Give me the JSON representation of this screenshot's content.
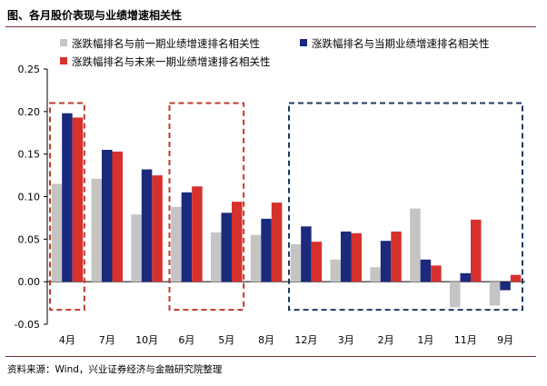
{
  "header": {
    "title": "图、各月股价表现与业绩增速相关性"
  },
  "footer": {
    "source": "资料来源：Wind，兴业证券经济与金融研究院整理"
  },
  "colors": {
    "prev": "#c4c4c4",
    "curr": "#1b2a7c",
    "next": "#d6312d",
    "box_red": "#c0392b",
    "box_navy": "#1f3a5f"
  },
  "chart_data": {
    "type": "bar",
    "title": "各月股价表现与业绩增速相关性",
    "xlabel": "",
    "ylabel": "",
    "ylim": [
      -0.05,
      0.25
    ],
    "yticks": [
      "-0.05",
      "0.00",
      "0.05",
      "0.10",
      "0.15",
      "0.20",
      "0.25"
    ],
    "ytick_values": [
      -0.05,
      0,
      0.05,
      0.1,
      0.15,
      0.2,
      0.25
    ],
    "categories": [
      "4月",
      "7月",
      "10月",
      "6月",
      "5月",
      "8月",
      "12月",
      "3月",
      "2月",
      "1月",
      "11月",
      "9月"
    ],
    "series": [
      {
        "name": "涨跌幅排名与前一期业绩增速排名相关性",
        "color": "#c4c4c4",
        "values": [
          0.115,
          0.121,
          0.079,
          0.088,
          0.058,
          0.055,
          0.044,
          0.026,
          0.017,
          0.086,
          -0.03,
          -0.028
        ]
      },
      {
        "name": "涨跌幅排名与当期业绩增速排名相关性",
        "color": "#1b2a7c",
        "values": [
          0.198,
          0.155,
          0.132,
          0.105,
          0.081,
          0.074,
          0.065,
          0.059,
          0.048,
          0.026,
          0.01,
          -0.01
        ]
      },
      {
        "name": "涨跌幅排名与未来一期业绩增速排名相关性",
        "color": "#d6312d",
        "values": [
          0.193,
          0.153,
          0.125,
          0.112,
          0.094,
          0.093,
          0.047,
          0.057,
          0.059,
          0.019,
          0.073,
          0.008
        ]
      }
    ],
    "legend_position": "top",
    "annotations": [
      {
        "type": "dashed-box",
        "color": "red",
        "categories": [
          "4月"
        ]
      },
      {
        "type": "dashed-box",
        "color": "red",
        "categories": [
          "6月",
          "5月"
        ]
      },
      {
        "type": "dashed-box",
        "color": "navy",
        "categories": [
          "12月",
          "3月",
          "2月",
          "1月",
          "11月",
          "9月"
        ]
      }
    ]
  }
}
